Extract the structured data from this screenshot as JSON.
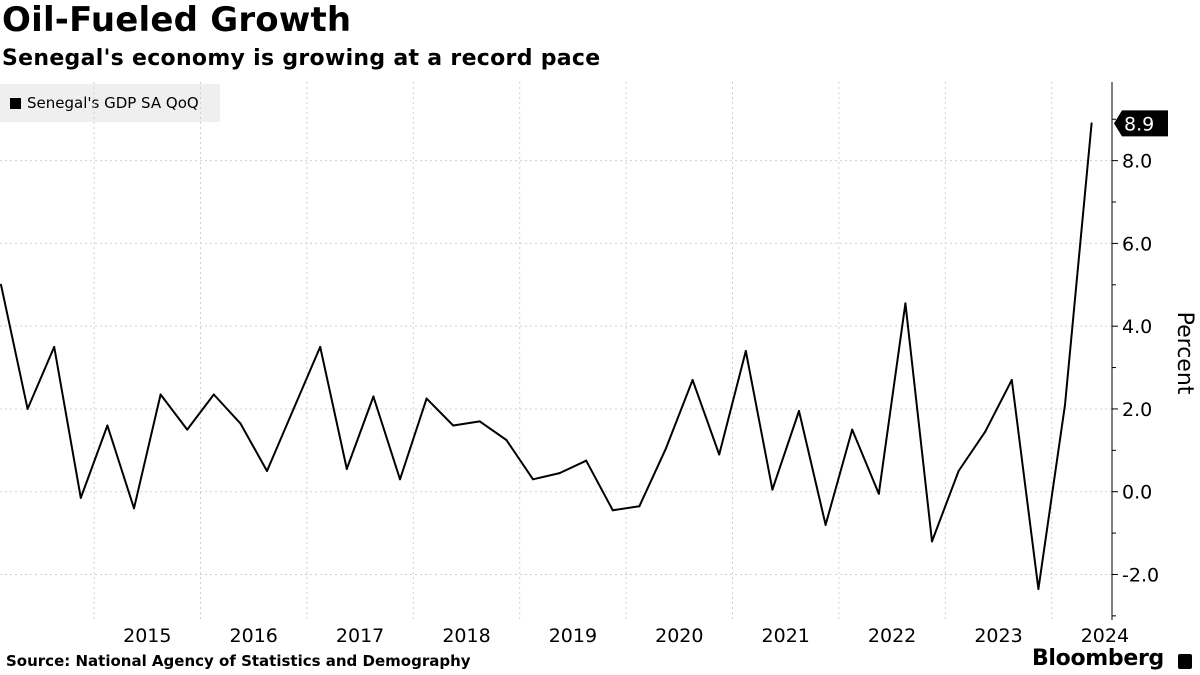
{
  "header": {
    "title": "Oil-Fueled Growth",
    "subtitle": "Senegal's economy is growing at a record pace"
  },
  "footer": {
    "source": "Source: National Agency of Statistics and Demography",
    "brand": "Bloomberg",
    "brand_icon": "bloomberg-mark-icon"
  },
  "colors": {
    "line": "#000000",
    "grid": "#d0d0d0",
    "legend_bg": "#efefef"
  },
  "chart_data": {
    "type": "line",
    "ylabel": "Percent",
    "ylim": [
      -3.1,
      9.9
    ],
    "yticks": [
      -2.0,
      0.0,
      2.0,
      4.0,
      6.0,
      8.0
    ],
    "ytick_labels": [
      "-2.0",
      "0.0",
      "2.0",
      "4.0",
      "6.0",
      "8.0"
    ],
    "xticks": [
      "2015",
      "2016",
      "2017",
      "2018",
      "2019",
      "2020",
      "2021",
      "2022",
      "2023",
      "2024"
    ],
    "grid": true,
    "legend_position": "top-left",
    "last_value_label": "8.9",
    "series": [
      {
        "name": "Senegal's GDP SA QoQ",
        "x": [
          "2014-Q1",
          "2014-Q2",
          "2014-Q3",
          "2014-Q4",
          "2015-Q1",
          "2015-Q2",
          "2015-Q3",
          "2015-Q4",
          "2016-Q1",
          "2016-Q2",
          "2016-Q3",
          "2016-Q4",
          "2017-Q1",
          "2017-Q2",
          "2017-Q3",
          "2017-Q4",
          "2018-Q1",
          "2018-Q2",
          "2018-Q3",
          "2018-Q4",
          "2019-Q1",
          "2019-Q2",
          "2019-Q3",
          "2019-Q4",
          "2020-Q1",
          "2020-Q2",
          "2020-Q3",
          "2020-Q4",
          "2021-Q1",
          "2021-Q2",
          "2021-Q3",
          "2021-Q4",
          "2022-Q1",
          "2022-Q2",
          "2022-Q3",
          "2022-Q4",
          "2023-Q1",
          "2023-Q2",
          "2023-Q3",
          "2023-Q4",
          "2024-Q1",
          "2024-Q2"
        ],
        "values": [
          5.0,
          2.0,
          3.5,
          -0.15,
          1.6,
          -0.4,
          2.35,
          1.5,
          2.35,
          1.65,
          0.5,
          2.0,
          3.5,
          0.55,
          2.3,
          0.3,
          2.25,
          1.6,
          1.7,
          1.25,
          0.3,
          0.45,
          0.75,
          -0.45,
          -0.35,
          1.05,
          2.7,
          0.9,
          3.4,
          0.05,
          1.95,
          -0.8,
          1.5,
          -0.05,
          4.55,
          -1.2,
          0.5,
          1.45,
          2.7,
          -2.35,
          2.1,
          8.9
        ]
      }
    ]
  }
}
